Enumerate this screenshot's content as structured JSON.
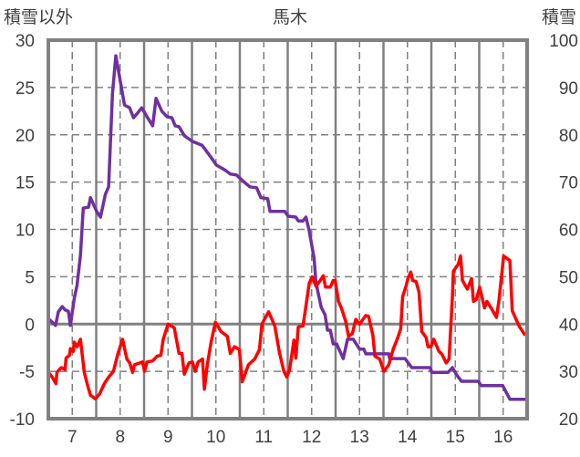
{
  "chart_data": {
    "type": "line",
    "title": "馬木",
    "ylabel_left": "積雪以外",
    "ylabel_right": "積雪",
    "xlim": [
      6.5,
      16.5
    ],
    "x_ticks": [
      "7",
      "8",
      "9",
      "10",
      "11",
      "12",
      "13",
      "14",
      "15",
      "16"
    ],
    "ylim_left": [
      -10,
      30
    ],
    "y_ticks_left": [
      "30",
      "25",
      "20",
      "15",
      "10",
      "5",
      "0",
      "-5",
      "-10"
    ],
    "ylim_right": [
      20,
      100
    ],
    "y_ticks_right": [
      "100",
      "90",
      "80",
      "70",
      "60",
      "50",
      "40",
      "30",
      "20"
    ],
    "grid": true,
    "series": [
      {
        "name": "積雪",
        "axis": "right",
        "color": "#7030A0",
        "points": [
          [
            6.52,
            41.0
          ],
          [
            6.65,
            39.7
          ],
          [
            6.71,
            42.6
          ],
          [
            6.79,
            43.7
          ],
          [
            6.85,
            43.0
          ],
          [
            6.92,
            42.7
          ],
          [
            6.96,
            39.7
          ],
          [
            7.04,
            45.4
          ],
          [
            7.1,
            48.2
          ],
          [
            7.17,
            54.5
          ],
          [
            7.23,
            64.5
          ],
          [
            7.34,
            64.7
          ],
          [
            7.38,
            66.7
          ],
          [
            7.51,
            63.8
          ],
          [
            7.59,
            62.6
          ],
          [
            7.69,
            67.4
          ],
          [
            7.76,
            69.0
          ],
          [
            7.84,
            88.6
          ],
          [
            7.91,
            96.7
          ],
          [
            8.09,
            86.3
          ],
          [
            8.2,
            85.7
          ],
          [
            8.28,
            83.6
          ],
          [
            8.35,
            84.4
          ],
          [
            8.45,
            85.7
          ],
          [
            8.56,
            83.8
          ],
          [
            8.68,
            81.9
          ],
          [
            8.75,
            87.7
          ],
          [
            8.87,
            85.0
          ],
          [
            8.98,
            83.8
          ],
          [
            9.08,
            83.6
          ],
          [
            9.15,
            81.9
          ],
          [
            9.23,
            81.7
          ],
          [
            9.34,
            79.8
          ],
          [
            9.51,
            78.6
          ],
          [
            9.71,
            77.8
          ],
          [
            9.9,
            75.2
          ],
          [
            10.01,
            73.6
          ],
          [
            10.2,
            72.5
          ],
          [
            10.3,
            71.7
          ],
          [
            10.43,
            71.5
          ],
          [
            10.58,
            70.1
          ],
          [
            10.71,
            69.0
          ],
          [
            10.85,
            68.8
          ],
          [
            10.94,
            66.7
          ],
          [
            11.08,
            66.5
          ],
          [
            11.13,
            63.8
          ],
          [
            11.44,
            63.8
          ],
          [
            11.51,
            62.8
          ],
          [
            11.67,
            62.6
          ],
          [
            11.72,
            61.8
          ],
          [
            11.82,
            61.8
          ],
          [
            11.88,
            62.6
          ],
          [
            11.95,
            59.7
          ],
          [
            12.05,
            53.9
          ],
          [
            12.09,
            48.7
          ],
          [
            12.2,
            43.5
          ],
          [
            12.28,
            42.0
          ],
          [
            12.33,
            38.7
          ],
          [
            12.39,
            38.7
          ],
          [
            12.45,
            35.8
          ],
          [
            12.52,
            35.8
          ],
          [
            12.66,
            32.7
          ],
          [
            12.75,
            36.8
          ],
          [
            12.87,
            36.8
          ],
          [
            13.0,
            34.7
          ],
          [
            13.09,
            34.7
          ],
          [
            13.13,
            33.7
          ],
          [
            13.61,
            33.7
          ],
          [
            13.63,
            32.7
          ],
          [
            13.95,
            32.7
          ],
          [
            14.09,
            30.8
          ],
          [
            14.47,
            30.8
          ],
          [
            14.51,
            29.8
          ],
          [
            14.85,
            29.8
          ],
          [
            14.94,
            30.8
          ],
          [
            15.04,
            29.1
          ],
          [
            15.13,
            27.9
          ],
          [
            15.48,
            27.9
          ],
          [
            15.54,
            27.0
          ],
          [
            15.99,
            27.0
          ],
          [
            16.14,
            24.1
          ],
          [
            16.49,
            24.1
          ]
        ]
      },
      {
        "name": "積雪以外",
        "axis": "left",
        "color": "#FF0000",
        "points": [
          [
            6.5,
            -5.1
          ],
          [
            6.58,
            -5.6
          ],
          [
            6.66,
            -6.3
          ],
          [
            6.68,
            -5.1
          ],
          [
            6.77,
            -4.6
          ],
          [
            6.85,
            -4.8
          ],
          [
            6.87,
            -3.6
          ],
          [
            6.94,
            -3.3
          ],
          [
            6.96,
            -2.6
          ],
          [
            7.02,
            -2.9
          ],
          [
            7.04,
            -1.9
          ],
          [
            7.1,
            -2.4
          ],
          [
            7.17,
            -1.6
          ],
          [
            7.25,
            -5.1
          ],
          [
            7.32,
            -6.5
          ],
          [
            7.38,
            -7.5
          ],
          [
            7.48,
            -7.9
          ],
          [
            7.57,
            -7.4
          ],
          [
            7.67,
            -6.3
          ],
          [
            7.76,
            -5.6
          ],
          [
            7.86,
            -5.0
          ],
          [
            7.95,
            -3.2
          ],
          [
            8.05,
            -1.6
          ],
          [
            8.14,
            -3.7
          ],
          [
            8.2,
            -4.1
          ],
          [
            8.26,
            -5.1
          ],
          [
            8.3,
            -4.3
          ],
          [
            8.47,
            -4.0
          ],
          [
            8.51,
            -5.0
          ],
          [
            8.56,
            -4.0
          ],
          [
            8.68,
            -3.9
          ],
          [
            8.77,
            -3.4
          ],
          [
            8.85,
            -3.3
          ],
          [
            8.9,
            -1.6
          ],
          [
            9.0,
            0.0
          ],
          [
            9.13,
            -0.4
          ],
          [
            9.23,
            -3.1
          ],
          [
            9.29,
            -3.1
          ],
          [
            9.34,
            -5.3
          ],
          [
            9.44,
            -4.1
          ],
          [
            9.51,
            -4.0
          ],
          [
            9.57,
            -5.0
          ],
          [
            9.63,
            -4.0
          ],
          [
            9.72,
            -3.7
          ],
          [
            9.76,
            -6.9
          ],
          [
            9.82,
            -4.3
          ],
          [
            9.9,
            -1.9
          ],
          [
            9.99,
            0.2
          ],
          [
            10.11,
            -0.8
          ],
          [
            10.24,
            -1.3
          ],
          [
            10.3,
            -3.1
          ],
          [
            10.39,
            -2.4
          ],
          [
            10.49,
            -2.7
          ],
          [
            10.55,
            -6.1
          ],
          [
            10.68,
            -4.3
          ],
          [
            10.81,
            -3.7
          ],
          [
            10.91,
            -2.7
          ],
          [
            10.96,
            0.0
          ],
          [
            11.1,
            1.3
          ],
          [
            11.23,
            -0.2
          ],
          [
            11.33,
            -3.1
          ],
          [
            11.42,
            -5.0
          ],
          [
            11.48,
            -5.6
          ],
          [
            11.54,
            -4.8
          ],
          [
            11.63,
            -1.7
          ],
          [
            11.67,
            -3.6
          ],
          [
            11.72,
            -0.3
          ],
          [
            11.82,
            -0.2
          ],
          [
            11.95,
            4.3
          ],
          [
            12.01,
            5.0
          ],
          [
            12.09,
            4.0
          ],
          [
            12.18,
            4.6
          ],
          [
            12.24,
            5.1
          ],
          [
            12.29,
            3.9
          ],
          [
            12.39,
            3.9
          ],
          [
            12.45,
            4.6
          ],
          [
            12.49,
            4.6
          ],
          [
            12.56,
            2.4
          ],
          [
            12.62,
            1.7
          ],
          [
            12.71,
            0.3
          ],
          [
            12.77,
            -1.3
          ],
          [
            12.85,
            -1.0
          ],
          [
            12.92,
            0.5
          ],
          [
            13.0,
            0.0
          ],
          [
            13.13,
            0.9
          ],
          [
            13.19,
            0.8
          ],
          [
            13.28,
            -1.2
          ],
          [
            13.32,
            -3.4
          ],
          [
            13.42,
            -3.7
          ],
          [
            13.51,
            -5.0
          ],
          [
            13.61,
            -4.3
          ],
          [
            13.7,
            -2.7
          ],
          [
            13.8,
            -1.4
          ],
          [
            13.86,
            -0.5
          ],
          [
            13.9,
            2.9
          ],
          [
            13.97,
            4.0
          ],
          [
            14.01,
            4.8
          ],
          [
            14.07,
            5.5
          ],
          [
            14.11,
            4.6
          ],
          [
            14.18,
            4.5
          ],
          [
            14.24,
            3.4
          ],
          [
            14.3,
            -0.8
          ],
          [
            14.39,
            -1.4
          ],
          [
            14.43,
            -2.4
          ],
          [
            14.49,
            -2.4
          ],
          [
            14.55,
            -1.6
          ],
          [
            14.66,
            -2.9
          ],
          [
            14.72,
            -3.2
          ],
          [
            14.81,
            -4.1
          ],
          [
            14.87,
            -3.7
          ],
          [
            14.94,
            2.9
          ],
          [
            14.96,
            5.6
          ],
          [
            15.06,
            6.3
          ],
          [
            15.11,
            7.2
          ],
          [
            15.15,
            4.6
          ],
          [
            15.25,
            3.7
          ],
          [
            15.34,
            4.8
          ],
          [
            15.38,
            2.4
          ],
          [
            15.44,
            2.6
          ],
          [
            15.51,
            3.9
          ],
          [
            15.61,
            1.7
          ],
          [
            15.66,
            2.4
          ],
          [
            15.76,
            1.6
          ],
          [
            15.86,
            0.7
          ],
          [
            15.91,
            2.4
          ],
          [
            16.01,
            7.2
          ],
          [
            16.14,
            6.7
          ],
          [
            16.19,
            1.4
          ],
          [
            16.33,
            -0.2
          ],
          [
            16.46,
            -1.2
          ]
        ]
      }
    ]
  }
}
